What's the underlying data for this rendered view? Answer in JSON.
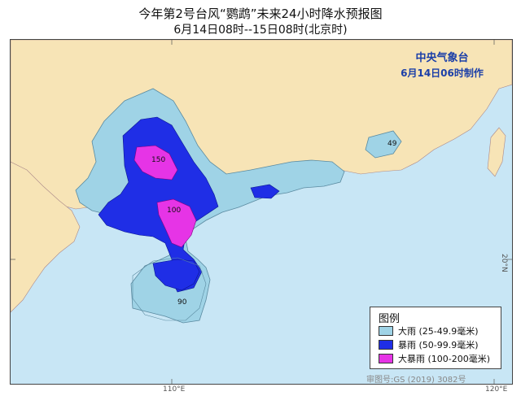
{
  "title": {
    "line1": "今年第2号台风“鹦鹉”未来24小时降水预报图",
    "line2": "6月14日08时--15日08时(北京时)"
  },
  "issuer": {
    "name": "中央气象台",
    "time": "6月14日06时制作"
  },
  "legend": {
    "title": "图例",
    "items": [
      {
        "label": "大雨 (25-49.9毫米)",
        "color": "#9fd3e6"
      },
      {
        "label": "暴雨 (50-99.9毫米)",
        "color": "#1f2ee6"
      },
      {
        "label": "大暴雨 (100-200毫米)",
        "color": "#e634e6"
      }
    ]
  },
  "map_labels": {
    "contour_150": "150",
    "contour_100": "100",
    "contour_90": "90",
    "contour_49": "49"
  },
  "axis": {
    "lon_110": "110°E",
    "lon_120": "120°E",
    "lat_20": "20°N"
  },
  "credit": "审图号:GS (2019) 3082号",
  "colors": {
    "sea": "#c8e6f5",
    "land": "#f7e4b6",
    "heavy_rain": "#9fd3e6",
    "rainstorm": "#1f2ee6",
    "heavy_rainstorm": "#e634e6"
  }
}
